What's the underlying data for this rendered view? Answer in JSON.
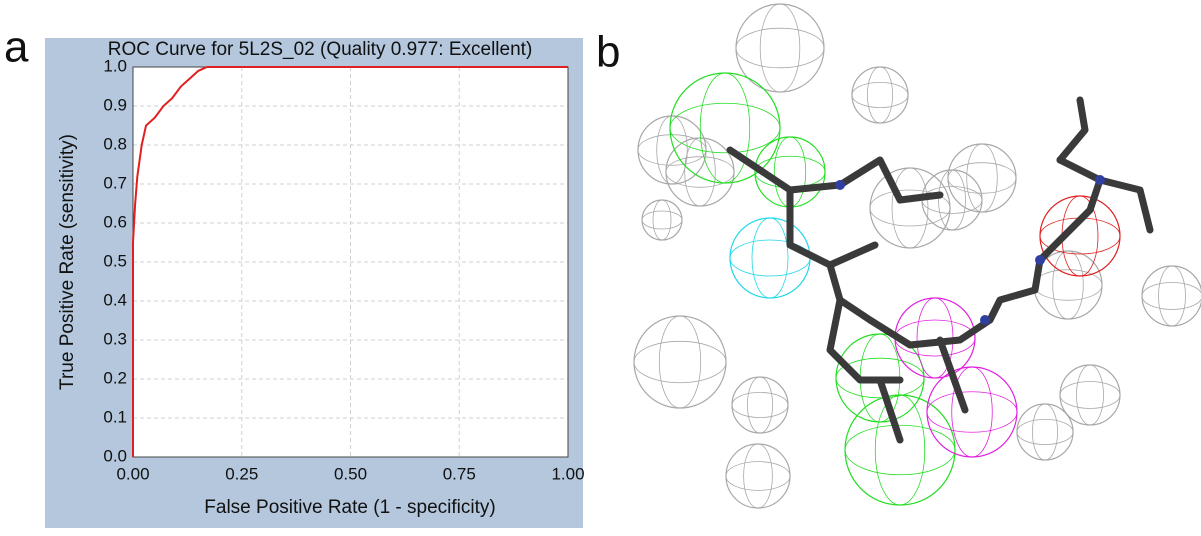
{
  "panel_labels": [
    "a",
    "b"
  ],
  "chart_data": {
    "type": "line",
    "title": "ROC Curve for 5L2S_02 (Quality 0.977: Excellent)",
    "x_label": "False Positive Rate (1 - specificity)",
    "y_label": "True Positive Rate (sensitivity)",
    "x": [
      0,
      0,
      0.005,
      0.01,
      0.02,
      0.03,
      0.05,
      0.07,
      0.09,
      0.11,
      0.13,
      0.15,
      0.17,
      1.0
    ],
    "series": [
      {
        "color": "#e02020",
        "values": [
          0,
          0.55,
          0.65,
          0.72,
          0.8,
          0.85,
          0.87,
          0.9,
          0.92,
          0.95,
          0.97,
          0.99,
          1.0,
          1.0
        ]
      }
    ],
    "xlim": [
      0,
      1
    ],
    "ylim": [
      0,
      1
    ],
    "xticks": [
      {
        "value": 0,
        "label": "0.00"
      },
      {
        "value": 0.25,
        "label": "0.25"
      },
      {
        "value": 0.5,
        "label": "0.50"
      },
      {
        "value": 0.75,
        "label": "0.75"
      },
      {
        "value": 1,
        "label": "1.00"
      }
    ],
    "yticks": [
      {
        "value": 0,
        "label": "0.0"
      },
      0.1,
      0.2,
      0.3,
      0.4,
      0.5,
      0.6,
      0.7,
      0.8,
      0.9,
      {
        "value": 1,
        "label": "1.0"
      }
    ],
    "grid": true
  }
}
